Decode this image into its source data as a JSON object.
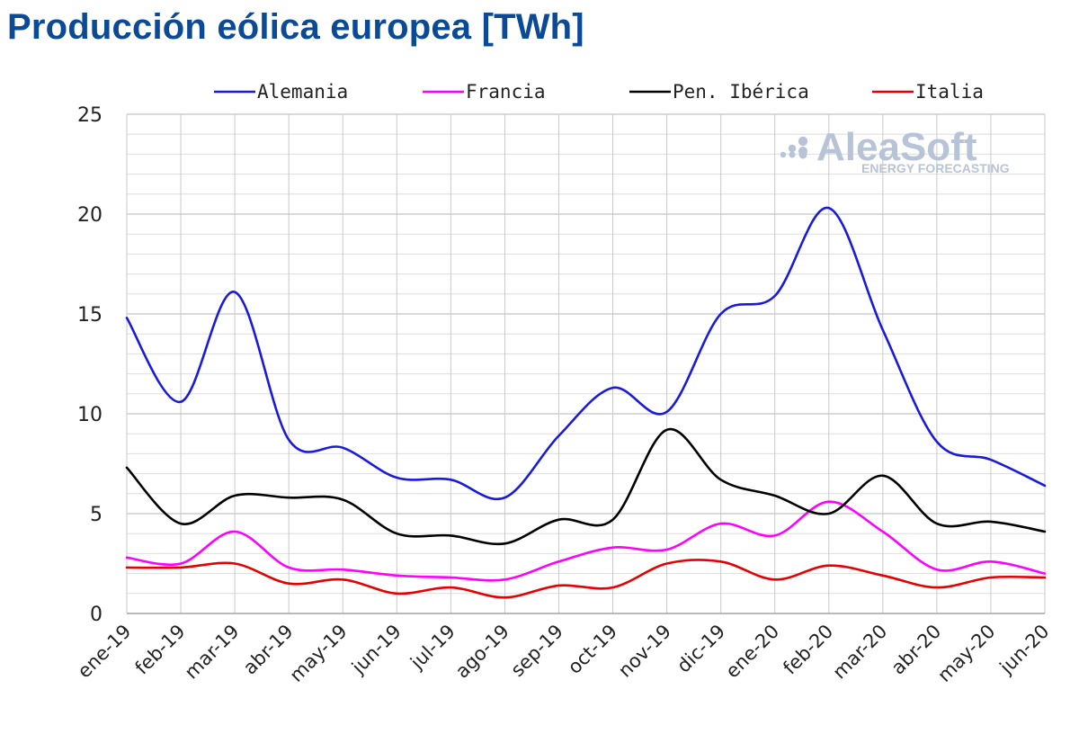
{
  "title": "Producción eólica europea [TWh]",
  "watermark": {
    "brand": "AleaSoft",
    "tagline": "ENERGY FORECASTING"
  },
  "chart_data": {
    "type": "line",
    "title": "Producción eólica europea [TWh]",
    "xlabel": "",
    "ylabel": "",
    "categories": [
      "ene-19",
      "feb-19",
      "mar-19",
      "abr-19",
      "may-19",
      "jun-19",
      "jul-19",
      "ago-19",
      "sep-19",
      "oct-19",
      "nov-19",
      "dic-19",
      "ene-20",
      "feb-20",
      "mar-20",
      "abr-20",
      "may-20",
      "jun-20"
    ],
    "ylim": [
      0,
      25
    ],
    "yticks": [
      0,
      5,
      10,
      15,
      20,
      25
    ],
    "grid": true,
    "legend": "top",
    "series": [
      {
        "name": "Alemania",
        "color": "#1a1adc",
        "values": [
          14.8,
          10.6,
          16.1,
          8.7,
          8.3,
          6.8,
          6.7,
          5.8,
          8.9,
          11.3,
          10.1,
          15.0,
          15.9,
          20.3,
          14.2,
          8.6,
          7.7,
          6.4
        ]
      },
      {
        "name": "Francia",
        "color": "#ff00ff",
        "values": [
          2.8,
          2.5,
          4.1,
          2.3,
          2.2,
          1.9,
          1.8,
          1.7,
          2.6,
          3.3,
          3.2,
          4.5,
          3.9,
          5.6,
          4.1,
          2.2,
          2.6,
          2.0
        ]
      },
      {
        "name": "Pen. Ibérica",
        "color": "#000000",
        "values": [
          7.3,
          4.5,
          5.9,
          5.8,
          5.7,
          4.0,
          3.9,
          3.5,
          4.7,
          4.7,
          9.2,
          6.7,
          5.9,
          5.0,
          6.9,
          4.5,
          4.6,
          4.1
        ]
      },
      {
        "name": "Italia",
        "color": "#e80000",
        "values": [
          2.3,
          2.3,
          2.5,
          1.5,
          1.7,
          1.0,
          1.3,
          0.8,
          1.4,
          1.3,
          2.5,
          2.6,
          1.7,
          2.4,
          1.9,
          1.3,
          1.8,
          1.8
        ]
      }
    ]
  }
}
